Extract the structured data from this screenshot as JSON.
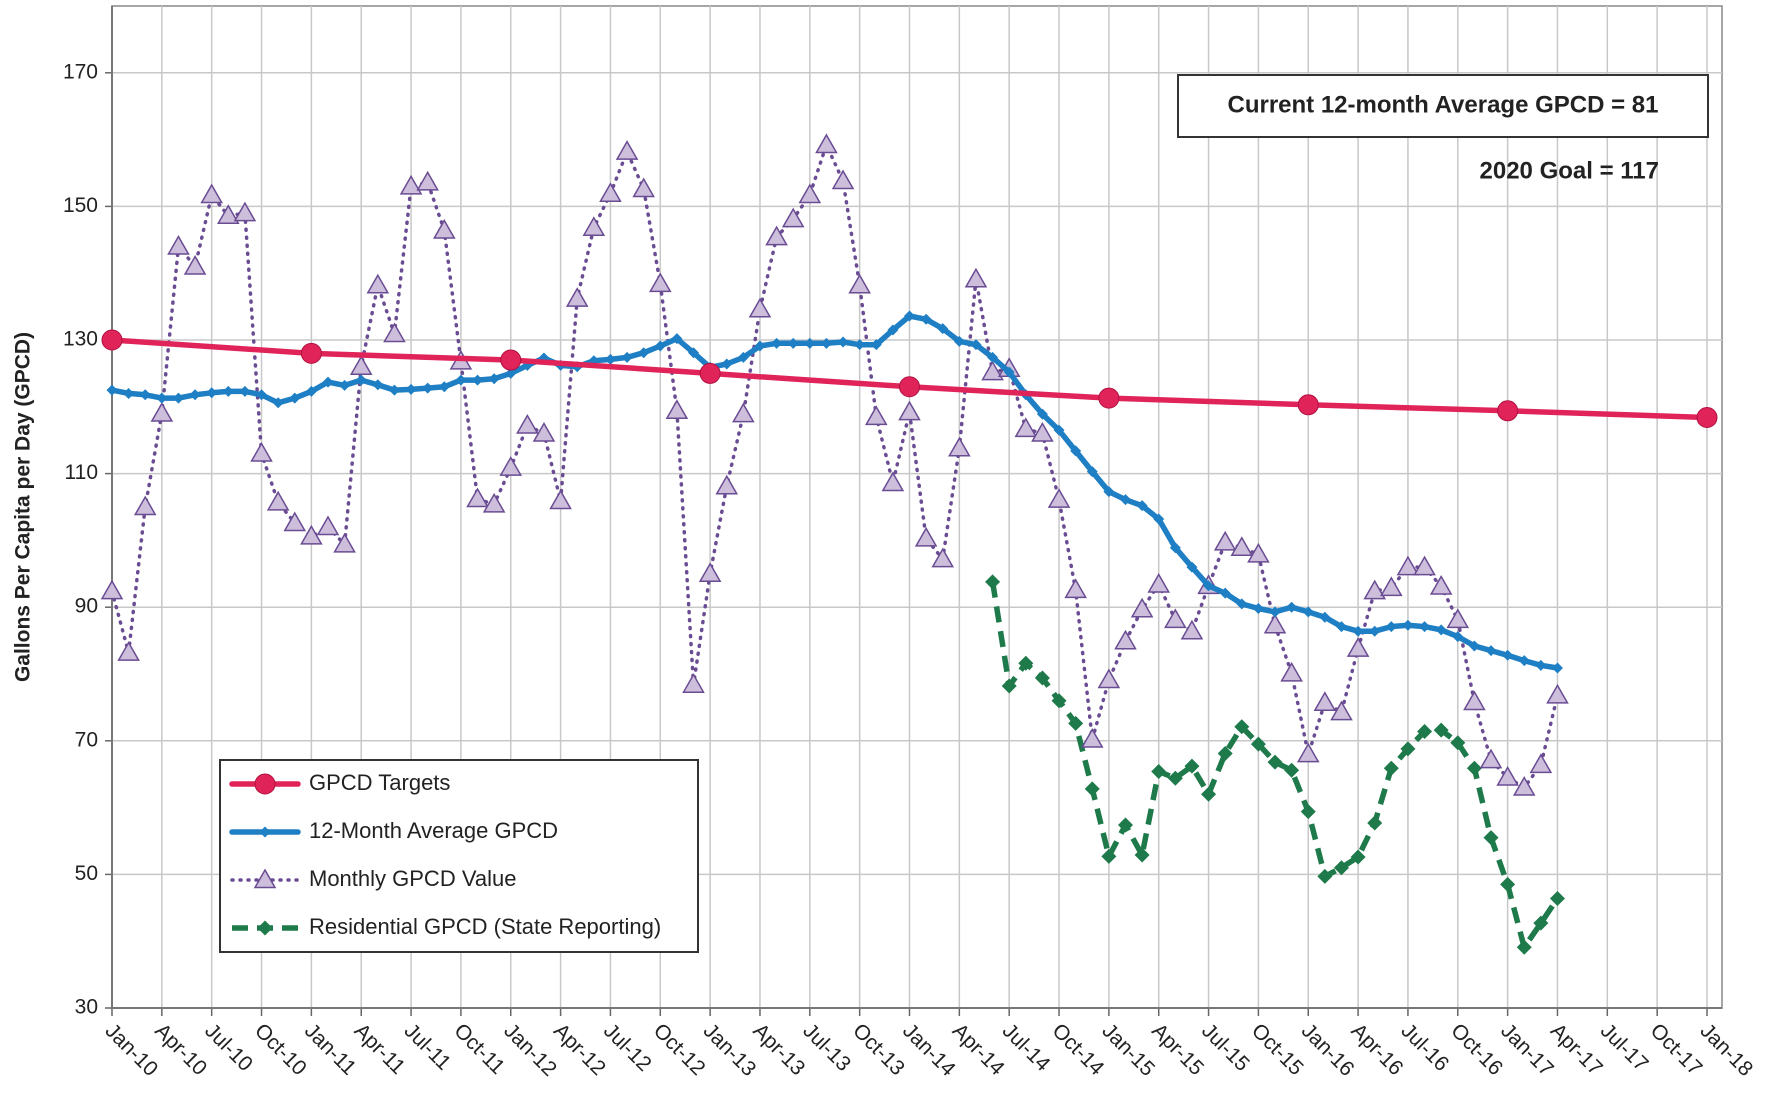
{
  "chart_data": {
    "type": "line",
    "y_label": "Gallons Per Capita per Day (GPCD)",
    "annotations": [
      "Current 12-month Average GPCD = 81",
      "2020 Goal = 117"
    ],
    "categories": [
      "Jan-10",
      null,
      null,
      "Apr-10",
      null,
      null,
      "Jul-10",
      null,
      null,
      "Oct-10",
      null,
      null,
      "Jan-11",
      null,
      null,
      "Apr-11",
      null,
      null,
      "Jul-11",
      null,
      null,
      "Oct-11",
      null,
      null,
      "Jan-12",
      null,
      null,
      "Apr-12",
      null,
      null,
      "Jul-12",
      null,
      null,
      "Oct-12",
      null,
      null,
      "Jan-13",
      null,
      null,
      "Apr-13",
      null,
      null,
      "Jul-13",
      null,
      null,
      "Oct-13",
      null,
      null,
      "Jan-14",
      null,
      null,
      "Apr-14",
      null,
      null,
      "Jul-14",
      null,
      null,
      "Oct-14",
      null,
      null,
      "Jan-15",
      null,
      null,
      "Apr-15",
      null,
      null,
      "Jul-15",
      null,
      null,
      "Oct-15",
      null,
      null,
      "Jan-16",
      null,
      null,
      "Apr-16",
      null,
      null,
      "Jul-16",
      null,
      null,
      "Oct-16",
      null,
      null,
      "Jan-17",
      null,
      null,
      "Apr-17",
      null,
      null,
      "Jul-17",
      null,
      null,
      "Oct-17",
      null,
      null,
      "Jan-18"
    ],
    "series": [
      {
        "name": "GPCD Targets",
        "color": "#e0245a",
        "line_style": "solid",
        "marker": "circle",
        "x": [
          "Jan-10",
          "Jan-11",
          "Jan-12",
          "Jan-13",
          "Jan-14",
          "Jan-15",
          "Jan-16",
          "Jan-17",
          "Jan-18"
        ],
        "values": [
          130,
          128,
          127,
          125,
          123,
          121.3,
          120.3,
          119.4,
          118.4
        ]
      },
      {
        "name": "12-Month Average GPCD",
        "color": "#1f7fc4",
        "line_style": "solid",
        "marker": "diamond",
        "values": [
          122.5,
          122,
          121.8,
          121.3,
          121.3,
          121.8,
          122.1,
          122.3,
          122.3,
          121.8,
          120.6,
          121.3,
          122.3,
          123.7,
          123.2,
          124,
          123.3,
          122.5,
          122.6,
          122.8,
          123,
          124,
          124,
          124.2,
          125,
          126.2,
          127.3,
          126.2,
          126,
          126.9,
          127.1,
          127.4,
          128.1,
          129.1,
          130.2,
          128.1,
          125.9,
          126.4,
          127.4,
          129.1,
          129.5,
          129.5,
          129.5,
          129.5,
          129.7,
          129.3,
          129.3,
          131.5,
          133.6,
          133.1,
          131.7,
          129.8,
          129.3,
          127.4,
          125.2,
          121.8,
          118.9,
          116.5,
          113.4,
          110.3,
          107.3,
          106.1,
          105.2,
          103.2,
          98.9,
          96,
          93.2,
          92.1,
          90.5,
          89.8,
          89.3,
          90,
          89.3,
          88.5,
          87.1,
          86.4,
          86.4,
          87.1,
          87.3,
          87.1,
          86.6,
          85.6,
          84.2,
          83.5,
          82.8,
          82,
          81.3,
          80.9,
          null,
          null,
          null,
          null,
          null,
          null,
          null,
          null,
          null
        ]
      },
      {
        "name": "Monthly GPCD Value",
        "color": "#6a4c93",
        "marker_fill": "#cdbfdc",
        "line_style": "dotted",
        "marker": "triangle",
        "values": [
          92.4,
          83.2,
          105,
          119,
          144,
          141,
          151.7,
          148.6,
          149,
          113,
          105.7,
          102.6,
          100.6,
          102,
          99.4,
          126,
          138.2,
          130.9,
          153,
          153.6,
          146.4,
          126.8,
          106.2,
          105.4,
          110.9,
          117.2,
          116,
          105.9,
          136.2,
          146.8,
          151.9,
          158.2,
          152.6,
          138.4,
          119.4,
          78.4,
          95,
          108.1,
          118.9,
          134.6,
          145.4,
          148.1,
          151.7,
          159.2,
          153.8,
          138.2,
          118.5,
          108.6,
          119.2,
          100.3,
          97.2,
          113.8,
          139.1,
          125.2,
          125.7,
          116.7,
          116,
          106.1,
          92.6,
          70.2,
          79.1,
          84.9,
          89.7,
          93.4,
          88.1,
          86.4,
          93.2,
          99.7,
          98.9,
          97.9,
          87.3,
          80.1,
          68,
          75.7,
          74.3,
          83.8,
          92.4,
          92.9,
          96,
          96,
          93.1,
          88.1,
          75.8,
          67.1,
          64.5,
          63,
          66.4,
          76.8,
          null,
          null,
          null,
          null,
          null,
          null,
          null,
          null,
          null
        ]
      },
      {
        "name": "Residential GPCD (State Reporting)",
        "color": "#1e7a4a",
        "line_style": "dashed",
        "marker": "diamond",
        "values": [
          null,
          null,
          null,
          null,
          null,
          null,
          null,
          null,
          null,
          null,
          null,
          null,
          null,
          null,
          null,
          null,
          null,
          null,
          null,
          null,
          null,
          null,
          null,
          null,
          null,
          null,
          null,
          null,
          null,
          null,
          null,
          null,
          null,
          null,
          null,
          null,
          null,
          null,
          null,
          null,
          null,
          null,
          null,
          null,
          null,
          null,
          null,
          null,
          null,
          null,
          null,
          null,
          null,
          93.8,
          78.2,
          81.6,
          79.4,
          76,
          72.6,
          62.8,
          52.7,
          57.4,
          52.9,
          65.4,
          64.4,
          66.2,
          62,
          68.1,
          72.1,
          69.5,
          66.8,
          65.6,
          59.4,
          49.7,
          51,
          52.6,
          57.7,
          65.9,
          68.8,
          71.4,
          71.6,
          69.7,
          65.9,
          55.5,
          48.5,
          39.1,
          42.7,
          46.4,
          null,
          null,
          null,
          null,
          null,
          null,
          null,
          null,
          null
        ]
      }
    ],
    "ylim": [
      30,
      180
    ],
    "yticks": [
      30,
      50,
      70,
      90,
      110,
      130,
      150,
      170
    ],
    "grid": true,
    "legend_position": "lower left"
  }
}
